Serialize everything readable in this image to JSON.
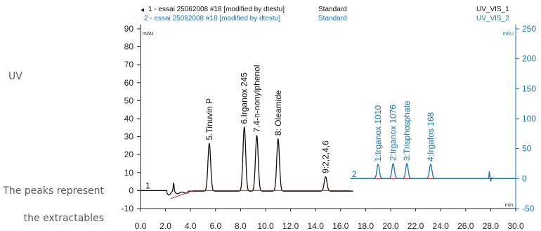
{
  "side_text": {
    "uv": "UV",
    "peaks_line1": "The peaks represent",
    "peaks_line2": "the extractables"
  },
  "header": {
    "trace1": "1 - essai 25062008 #18 [modified by dtestu]",
    "trace1_method": "Standard",
    "trace1_channel": "UV_VIS_1",
    "trace2": "2 - essai 25062008 #18 [modified by dtestu]",
    "trace2_method": "Standard",
    "trace2_channel": "UV_VIS_2"
  },
  "colors": {
    "trace1": "#111111",
    "trace2": "#1a74b0",
    "baseline": "#d81b1b",
    "axis2": "#1a74b0"
  },
  "chart_data": {
    "type": "line",
    "x_unit": "min",
    "left_axis": {
      "unit": "mAU",
      "ylim": [
        -10,
        90
      ],
      "ticks": [
        -10,
        0,
        10,
        20,
        30,
        40,
        50,
        60,
        70,
        80,
        90
      ]
    },
    "right_axis": {
      "unit": "mAU",
      "ylim": [
        -50,
        250
      ],
      "ticks": [
        -50,
        0,
        50,
        100,
        150,
        200,
        250
      ]
    },
    "x_axis": {
      "xlim": [
        0,
        30
      ],
      "ticks": [
        "0.0",
        "2.0",
        "4.0",
        "6.0",
        "8.0",
        "10.0",
        "12.0",
        "14.0",
        "16.0",
        "18.0",
        "20.0",
        "22.0",
        "24.0",
        "26.0",
        "28.0",
        "30.0"
      ]
    },
    "grid": false,
    "series": [
      {
        "name": "1",
        "axis": "left",
        "x_range": [
          0,
          17
        ],
        "peaks": [
          {
            "label": "5.Tinuvin P",
            "x": 5.5,
            "height": 26.5
          },
          {
            "label": "6.Irganox 245",
            "x": 8.3,
            "height": 35.5
          },
          {
            "label": "7.4-n-nonylphenol",
            "x": 9.3,
            "height": 30.8
          },
          {
            "label": "8: Oleamide",
            "x": 11.0,
            "height": 29.0
          },
          {
            "label": "9:2,2,4,6",
            "x": 14.8,
            "height": 8.0
          }
        ]
      },
      {
        "name": "2",
        "axis": "right",
        "x_range": [
          16.8,
          30
        ],
        "peaks": [
          {
            "label": "1:Irganox 1010",
            "x": 19.0,
            "height": 24
          },
          {
            "label": "2:Irganox 1076",
            "x": 20.2,
            "height": 25
          },
          {
            "label": "3:Trisphosphate",
            "x": 21.3,
            "height": 25
          },
          {
            "label": "4:Irgafos 168",
            "x": 23.2,
            "height": 24
          }
        ]
      }
    ]
  }
}
